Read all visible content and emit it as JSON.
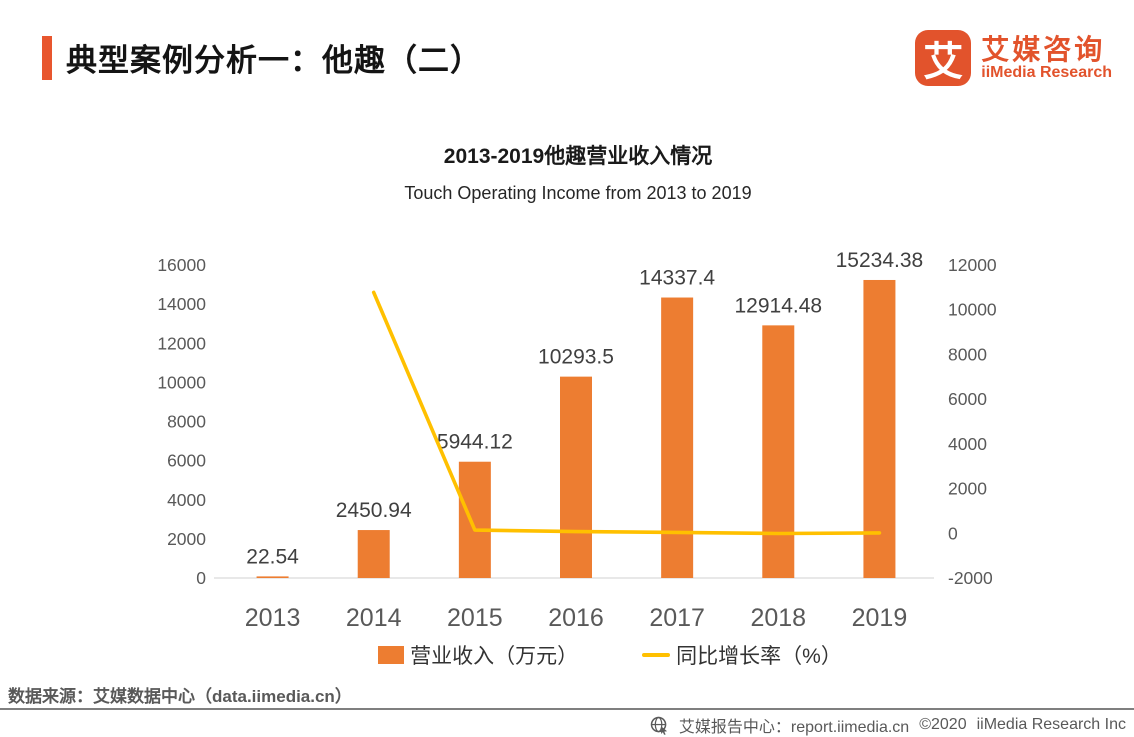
{
  "header": {
    "title": "典型案例分析一：他趣（二）",
    "logo": {
      "mark": "艾",
      "cn": "艾媒咨询",
      "en": "iiMedia Research"
    }
  },
  "chart": {
    "title": "2013-2019他趣营业收入情况",
    "subtitle": "Touch Operating Income from 2013 to 2019"
  },
  "chart_data": {
    "type": "bar",
    "categories": [
      "2013",
      "2014",
      "2015",
      "2016",
      "2017",
      "2018",
      "2019"
    ],
    "series": [
      {
        "name": "营业收入（万元）",
        "type": "bar",
        "axis": "left",
        "color": "#ED7D31",
        "values": [
          22.54,
          2450.94,
          5944.12,
          10293.5,
          14337.4,
          12914.48,
          15234.38
        ],
        "labels": [
          "22.54",
          "2450.94",
          "5944.12",
          "10293.5",
          "14337.4",
          "12914.48",
          "15234.38"
        ]
      },
      {
        "name": "同比增长率（%）",
        "type": "line",
        "axis": "right",
        "color": "#FFC000",
        "values": [
          null,
          10774.2,
          142.5,
          73.2,
          39.3,
          -9.9,
          18.0
        ]
      }
    ],
    "axes": {
      "left": {
        "min": 0,
        "max": 16000,
        "ticks": [
          0,
          2000,
          4000,
          6000,
          8000,
          10000,
          12000,
          14000,
          16000
        ]
      },
      "right": {
        "min": -2000,
        "max": 12000,
        "ticks": [
          -2000,
          0,
          2000,
          4000,
          6000,
          8000,
          10000,
          12000
        ]
      }
    },
    "grid": false,
    "legend_position": "bottom",
    "axis_label_color": "#595959",
    "value_label_color": "#404040",
    "baseline_color": "#D9D9D9"
  },
  "footer": {
    "source": "数据来源：艾媒数据中心（data.iimedia.cn）",
    "report_center": "艾媒报告中心：report.iimedia.cn",
    "copyright": "©2020",
    "company": "iiMedia Research Inc"
  }
}
